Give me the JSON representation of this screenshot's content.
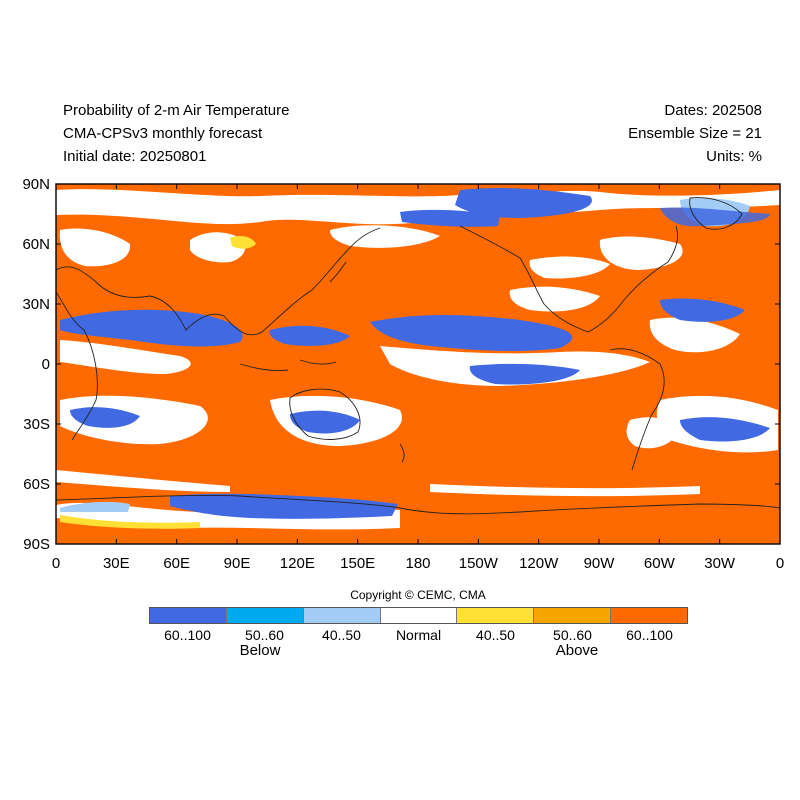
{
  "header": {
    "title": "Probability of 2-m Air Temperature",
    "subtitle": "CMA-CPSv3 monthly forecast",
    "initial_date": "Initial date: 20250801",
    "dates": "Dates: 202508",
    "ensemble": "Ensemble Size = 21",
    "units": "Units: %"
  },
  "map": {
    "lat_ticks": [
      "90N",
      "60N",
      "30N",
      "0",
      "30S",
      "60S",
      "90S"
    ],
    "lon_ticks": [
      "0",
      "30E",
      "60E",
      "90E",
      "120E",
      "150E",
      "180",
      "150W",
      "120W",
      "90W",
      "60W",
      "30W",
      "0"
    ],
    "colors": {
      "above_60_100": "#ff6a00",
      "above_50_60": "#f7a600",
      "above_40_50": "#ffe135",
      "normal": "#ffffff",
      "below_40_50": "#a3cdf7",
      "below_50_60": "#00aaee",
      "below_60_100": "#4169e1",
      "coast": "#222222"
    }
  },
  "copyright": "Copyright © CEMC, CMA",
  "legend": {
    "colors": [
      "#4169e1",
      "#00aaee",
      "#a3cdf7",
      "#ffffff",
      "#ffe135",
      "#f7a600",
      "#ff6a00"
    ],
    "labels": [
      "60..100",
      "50..60",
      "40..50",
      "Normal",
      "40..50",
      "50..60",
      "60..100"
    ],
    "below": "Below",
    "above": "Above"
  }
}
